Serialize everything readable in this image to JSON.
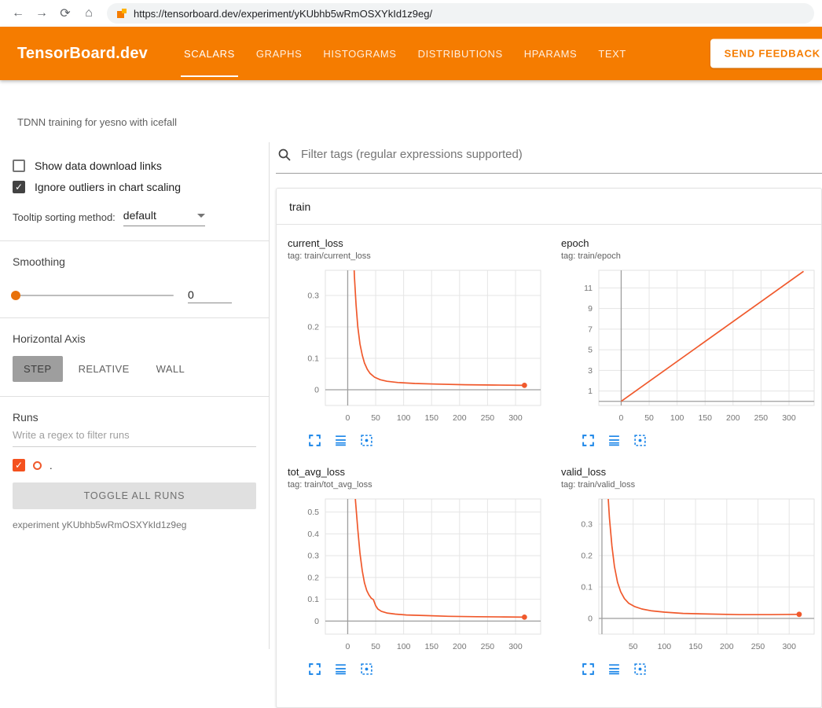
{
  "browser": {
    "url": "https://tensorboard.dev/experiment/yKUbhb5wRmOSXYkId1z9eg/",
    "back_glyph": "←",
    "forward_glyph": "→",
    "reload_glyph": "⟳",
    "home_glyph": "⌂"
  },
  "header": {
    "logo": "TensorBoard.dev",
    "tabs": [
      {
        "label": "SCALARS",
        "active": true
      },
      {
        "label": "GRAPHS",
        "active": false
      },
      {
        "label": "HISTOGRAMS",
        "active": false
      },
      {
        "label": "DISTRIBUTIONS",
        "active": false
      },
      {
        "label": "HPARAMS",
        "active": false
      },
      {
        "label": "TEXT",
        "active": false
      }
    ],
    "feedback_button": "SEND FEEDBACK"
  },
  "experiment_title": "TDNN training for yesno with icefall",
  "sidebar": {
    "checkboxes": [
      {
        "label": "Show data download links",
        "checked": false
      },
      {
        "label": "Ignore outliers in chart scaling",
        "checked": true
      }
    ],
    "tooltip_sorting_label": "Tooltip sorting method:",
    "tooltip_sorting_value": "default",
    "smoothing_label": "Smoothing",
    "smoothing_value": "0",
    "horizontal_axis_label": "Horizontal Axis",
    "axis_buttons": [
      {
        "label": "STEP",
        "active": true
      },
      {
        "label": "RELATIVE",
        "active": false
      },
      {
        "label": "WALL",
        "active": false
      }
    ],
    "runs_label": "Runs",
    "runs_filter_placeholder": "Write a regex to filter runs",
    "run_item": {
      "label": ".",
      "checked": true
    },
    "toggle_all_runs": "TOGGLE ALL RUNS",
    "experiment_caption": "experiment yKUbhb5wRmOSXYkId1z9eg"
  },
  "main": {
    "filter_placeholder": "Filter tags (regular expressions supported)",
    "group_title": "train",
    "chart_toolbar_icons": [
      "fullscreen-icon",
      "log-scale-icon",
      "fit-domain-icon"
    ]
  },
  "colors": {
    "header_orange": "#f57c00",
    "run_color": "#f0592c",
    "icon_blue": "#1a85e8"
  },
  "chart_data": [
    {
      "type": "line",
      "title": "current_loss",
      "tag": "tag: train/current_loss",
      "color": "#f0592c",
      "x_range": [
        -40,
        345
      ],
      "y_range": [
        -0.05,
        0.38
      ],
      "x_ticks": [
        0,
        50,
        100,
        150,
        200,
        250,
        300
      ],
      "y_ticks": [
        0,
        0.1,
        0.2,
        0.3
      ],
      "points": [
        [
          0,
          1.2
        ],
        [
          5,
          0.75
        ],
        [
          9,
          0.5
        ],
        [
          12,
          0.36
        ],
        [
          15,
          0.27
        ],
        [
          18,
          0.2
        ],
        [
          22,
          0.145
        ],
        [
          26,
          0.11
        ],
        [
          30,
          0.085
        ],
        [
          35,
          0.065
        ],
        [
          40,
          0.052
        ],
        [
          48,
          0.04
        ],
        [
          58,
          0.032
        ],
        [
          70,
          0.027
        ],
        [
          90,
          0.023
        ],
        [
          120,
          0.02
        ],
        [
          160,
          0.018
        ],
        [
          210,
          0.016
        ],
        [
          260,
          0.015
        ],
        [
          316,
          0.014
        ]
      ],
      "end_dot": true
    },
    {
      "type": "line",
      "title": "epoch",
      "tag": "tag: train/epoch",
      "color": "#f0592c",
      "x_range": [
        -40,
        345
      ],
      "y_range": [
        -0.4,
        12.7
      ],
      "x_ticks": [
        0,
        50,
        100,
        150,
        200,
        250,
        300
      ],
      "y_ticks": [
        1,
        3,
        5,
        7,
        9,
        11
      ],
      "points": [
        [
          0,
          0
        ],
        [
          326,
          12.6
        ]
      ],
      "end_dot": false
    },
    {
      "type": "line",
      "title": "tot_avg_loss",
      "tag": "tag: train/tot_avg_loss",
      "color": "#f0592c",
      "x_range": [
        -40,
        345
      ],
      "y_range": [
        -0.06,
        0.56
      ],
      "x_ticks": [
        0,
        50,
        100,
        150,
        200,
        250,
        300
      ],
      "y_ticks": [
        0,
        0.1,
        0.2,
        0.3,
        0.4,
        0.5
      ],
      "points": [
        [
          0,
          1.3
        ],
        [
          6,
          0.95
        ],
        [
          10,
          0.72
        ],
        [
          14,
          0.55
        ],
        [
          18,
          0.42
        ],
        [
          22,
          0.31
        ],
        [
          26,
          0.23
        ],
        [
          30,
          0.175
        ],
        [
          34,
          0.14
        ],
        [
          38,
          0.12
        ],
        [
          42,
          0.105
        ],
        [
          46,
          0.098
        ],
        [
          50,
          0.07
        ],
        [
          54,
          0.055
        ],
        [
          60,
          0.045
        ],
        [
          70,
          0.037
        ],
        [
          85,
          0.032
        ],
        [
          105,
          0.028
        ],
        [
          140,
          0.025
        ],
        [
          180,
          0.022
        ],
        [
          230,
          0.02
        ],
        [
          280,
          0.019
        ],
        [
          316,
          0.018
        ]
      ],
      "end_dot": true
    },
    {
      "type": "line",
      "title": "valid_loss",
      "tag": "tag: train/valid_loss",
      "color": "#f0592c",
      "x_range": [
        -5,
        340
      ],
      "y_range": [
        -0.05,
        0.38
      ],
      "x_ticks": [
        50,
        100,
        150,
        200,
        250,
        300
      ],
      "y_ticks": [
        0,
        0.1,
        0.2,
        0.3
      ],
      "points": [
        [
          0,
          1.0
        ],
        [
          4,
          0.66
        ],
        [
          8,
          0.45
        ],
        [
          12,
          0.32
        ],
        [
          16,
          0.23
        ],
        [
          20,
          0.165
        ],
        [
          25,
          0.115
        ],
        [
          30,
          0.085
        ],
        [
          36,
          0.063
        ],
        [
          43,
          0.048
        ],
        [
          52,
          0.038
        ],
        [
          64,
          0.03
        ],
        [
          80,
          0.024
        ],
        [
          100,
          0.02
        ],
        [
          130,
          0.016
        ],
        [
          170,
          0.014
        ],
        [
          220,
          0.012
        ],
        [
          270,
          0.012
        ],
        [
          316,
          0.013
        ]
      ],
      "end_dot": true
    }
  ]
}
